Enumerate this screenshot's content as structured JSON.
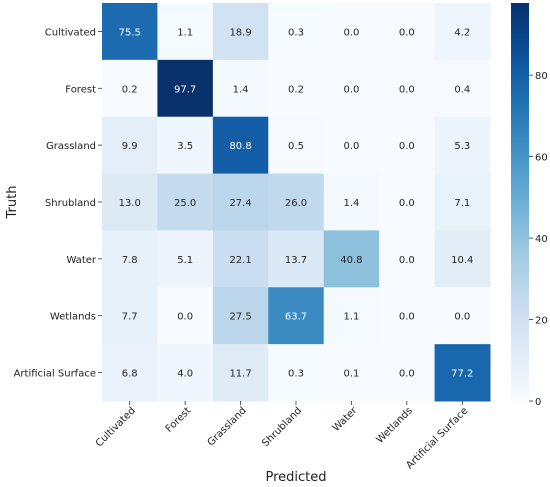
{
  "chart_data": {
    "type": "heatmap",
    "xlabel": "Predicted",
    "ylabel": "Truth",
    "x_categories": [
      "Cultivated",
      "Forest",
      "Grassland",
      "Shrubland",
      "Water",
      "Wetlands",
      "Artificial Surface"
    ],
    "y_categories": [
      "Cultivated",
      "Forest",
      "Grassland",
      "Shrubland",
      "Water",
      "Wetlands",
      "Artificial Surface"
    ],
    "values": [
      [
        75.5,
        1.1,
        18.9,
        0.3,
        0.0,
        0.0,
        4.2
      ],
      [
        0.2,
        97.7,
        1.4,
        0.2,
        0.0,
        0.0,
        0.4
      ],
      [
        9.9,
        3.5,
        80.8,
        0.5,
        0.0,
        0.0,
        5.3
      ],
      [
        13.0,
        25.0,
        27.4,
        26.0,
        1.4,
        0.0,
        7.1
      ],
      [
        7.8,
        5.1,
        22.1,
        13.7,
        40.8,
        0.0,
        10.4
      ],
      [
        7.7,
        0.0,
        27.5,
        63.7,
        1.1,
        0.0,
        0.0
      ],
      [
        6.8,
        4.0,
        11.7,
        0.3,
        0.1,
        0.0,
        77.2
      ]
    ],
    "colormap": "Blues",
    "value_range": [
      0,
      97.7
    ],
    "colorbar_ticks": [
      0,
      20,
      40,
      60,
      80
    ],
    "annotation_format": "0.1f"
  }
}
